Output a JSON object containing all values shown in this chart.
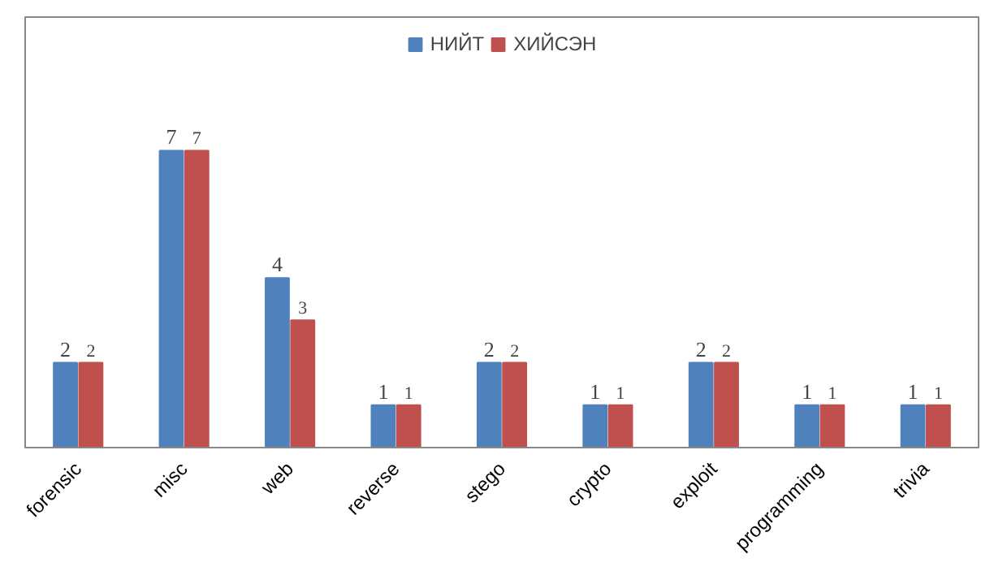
{
  "chart_data": {
    "type": "bar",
    "categories": [
      "forensic",
      "misc",
      "web",
      "reverse",
      "stego",
      "crypto",
      "exploit",
      "programming",
      "trivia"
    ],
    "series": [
      {
        "name": "НИЙТ",
        "color": "#4f81bd",
        "values": [
          2,
          7,
          4,
          1,
          2,
          1,
          2,
          1,
          1
        ]
      },
      {
        "name": "ХИЙСЭН",
        "color": "#c0504d",
        "values": [
          2,
          7,
          3,
          1,
          2,
          1,
          2,
          1,
          1
        ]
      }
    ],
    "data_labels": true,
    "legend": "top",
    "grid": false
  }
}
